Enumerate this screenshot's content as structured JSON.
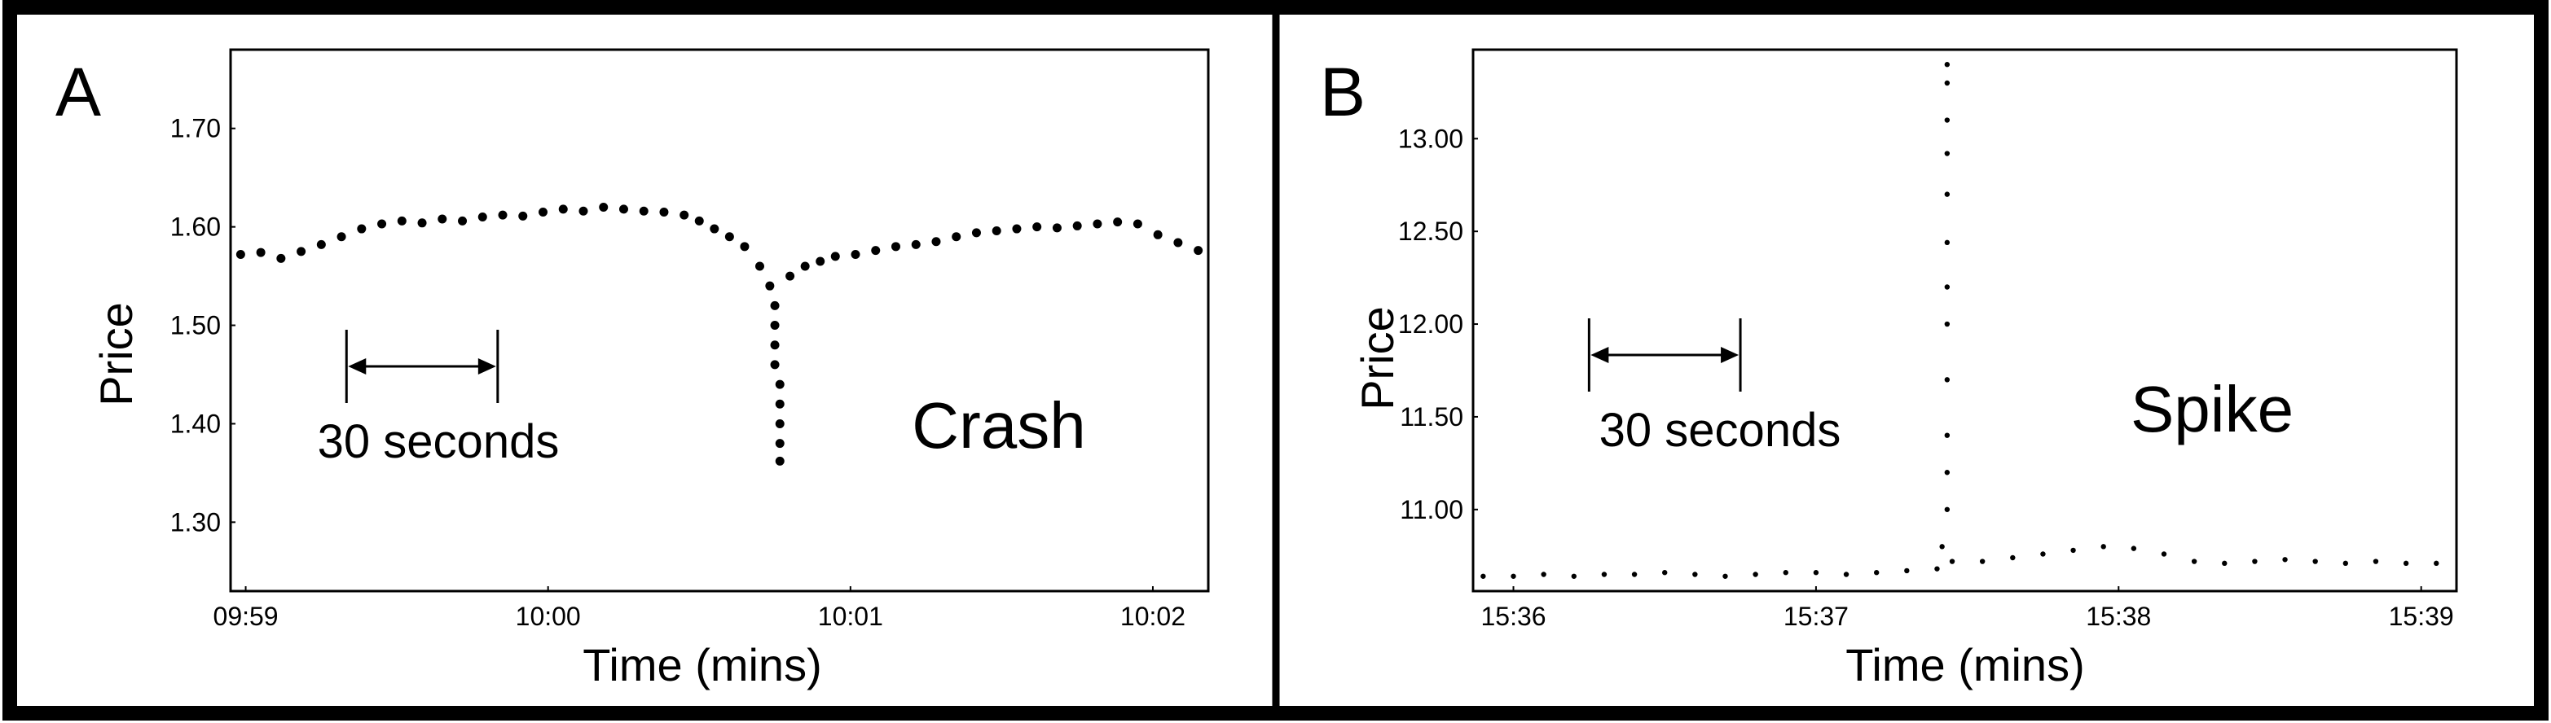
{
  "panels": [
    {
      "letter": "A",
      "annotation": "Crash",
      "interval_label": "30 seconds",
      "chart_data": {
        "type": "scatter",
        "xlabel": "Time (mins)",
        "ylabel": "Price",
        "x_ticks": [
          "09:59",
          "10:00",
          "10:01",
          "10:02"
        ],
        "y_ticks": [
          "1.70",
          "1.60",
          "1.50",
          "1.40",
          "1.30"
        ],
        "xlim": [
          "09:58:57",
          "10:02:11"
        ],
        "ylim": [
          1.23,
          1.78
        ],
        "grid": false,
        "interval_marker": {
          "start": "09:59:20",
          "end": "09:59:50"
        },
        "series": [
          {
            "points": [
              [
                "09:58:59",
                1.572
              ],
              [
                "09:59:03",
                1.574
              ],
              [
                "09:59:07",
                1.568
              ],
              [
                "09:59:11",
                1.575
              ],
              [
                "09:59:15",
                1.582
              ],
              [
                "09:59:19",
                1.59
              ],
              [
                "09:59:23",
                1.598
              ],
              [
                "09:59:27",
                1.603
              ],
              [
                "09:59:31",
                1.606
              ],
              [
                "09:59:35",
                1.604
              ],
              [
                "09:59:39",
                1.608
              ],
              [
                "09:59:43",
                1.606
              ],
              [
                "09:59:47",
                1.61
              ],
              [
                "09:59:51",
                1.612
              ],
              [
                "09:59:55",
                1.611
              ],
              [
                "09:59:59",
                1.615
              ],
              [
                "10:00:03",
                1.618
              ],
              [
                "10:00:07",
                1.616
              ],
              [
                "10:00:11",
                1.62
              ],
              [
                "10:00:15",
                1.618
              ],
              [
                "10:00:19",
                1.616
              ],
              [
                "10:00:23",
                1.615
              ],
              [
                "10:00:27",
                1.612
              ],
              [
                "10:00:30",
                1.606
              ],
              [
                "10:00:33",
                1.598
              ],
              [
                "10:00:36",
                1.59
              ],
              [
                "10:00:39",
                1.58
              ],
              [
                "10:00:42",
                1.56
              ],
              [
                "10:00:44",
                1.54
              ],
              [
                "10:00:45",
                1.52
              ],
              [
                "10:00:45",
                1.5
              ],
              [
                "10:00:45",
                1.48
              ],
              [
                "10:00:45",
                1.46
              ],
              [
                "10:00:46",
                1.44
              ],
              [
                "10:00:46",
                1.42
              ],
              [
                "10:00:46",
                1.4
              ],
              [
                "10:00:46",
                1.38
              ],
              [
                "10:00:46",
                1.362
              ],
              [
                "10:00:48",
                1.55
              ],
              [
                "10:00:51",
                1.56
              ],
              [
                "10:00:54",
                1.565
              ],
              [
                "10:00:57",
                1.57
              ],
              [
                "10:01:01",
                1.572
              ],
              [
                "10:01:05",
                1.576
              ],
              [
                "10:01:09",
                1.58
              ],
              [
                "10:01:13",
                1.582
              ],
              [
                "10:01:17",
                1.585
              ],
              [
                "10:01:21",
                1.59
              ],
              [
                "10:01:25",
                1.594
              ],
              [
                "10:01:29",
                1.596
              ],
              [
                "10:01:33",
                1.598
              ],
              [
                "10:01:37",
                1.6
              ],
              [
                "10:01:41",
                1.599
              ],
              [
                "10:01:45",
                1.601
              ],
              [
                "10:01:49",
                1.603
              ],
              [
                "10:01:53",
                1.605
              ],
              [
                "10:01:57",
                1.603
              ],
              [
                "10:02:01",
                1.592
              ],
              [
                "10:02:05",
                1.584
              ],
              [
                "10:02:09",
                1.576
              ]
            ]
          }
        ]
      }
    },
    {
      "letter": "B",
      "annotation": "Spike",
      "interval_label": "30 seconds",
      "chart_data": {
        "type": "scatter",
        "xlabel": "Time (mins)",
        "ylabel": "Price",
        "x_ticks": [
          "15:36",
          "15:37",
          "15:38",
          "15:39"
        ],
        "y_ticks": [
          "13.00",
          "12.50",
          "12.00",
          "11.50",
          "11.00"
        ],
        "xlim": [
          "15:35:52",
          "15:39:07"
        ],
        "ylim": [
          10.56,
          13.48
        ],
        "grid": false,
        "interval_marker": {
          "start": "15:36:15",
          "end": "15:36:45"
        },
        "series": [
          {
            "points": [
              [
                "15:35:54",
                10.64
              ],
              [
                "15:36:00",
                10.64
              ],
              [
                "15:36:06",
                10.65
              ],
              [
                "15:36:12",
                10.64
              ],
              [
                "15:36:18",
                10.65
              ],
              [
                "15:36:24",
                10.65
              ],
              [
                "15:36:30",
                10.66
              ],
              [
                "15:36:36",
                10.65
              ],
              [
                "15:36:42",
                10.64
              ],
              [
                "15:36:48",
                10.65
              ],
              [
                "15:36:54",
                10.66
              ],
              [
                "15:37:00",
                10.66
              ],
              [
                "15:37:06",
                10.65
              ],
              [
                "15:37:12",
                10.66
              ],
              [
                "15:37:18",
                10.67
              ],
              [
                "15:37:24",
                10.68
              ],
              [
                "15:37:25",
                10.8
              ],
              [
                "15:37:26",
                11.0
              ],
              [
                "15:37:26",
                11.2
              ],
              [
                "15:37:26",
                11.4
              ],
              [
                "15:37:26",
                11.7
              ],
              [
                "15:37:26",
                12.0
              ],
              [
                "15:37:26",
                12.2
              ],
              [
                "15:37:26",
                12.44
              ],
              [
                "15:37:26",
                12.7
              ],
              [
                "15:37:26",
                12.92
              ],
              [
                "15:37:26",
                13.1
              ],
              [
                "15:37:26",
                13.3
              ],
              [
                "15:37:26",
                13.4
              ],
              [
                "15:37:27",
                10.72
              ],
              [
                "15:37:33",
                10.72
              ],
              [
                "15:37:39",
                10.74
              ],
              [
                "15:37:45",
                10.76
              ],
              [
                "15:37:51",
                10.78
              ],
              [
                "15:37:57",
                10.8
              ],
              [
                "15:38:03",
                10.79
              ],
              [
                "15:38:09",
                10.76
              ],
              [
                "15:38:15",
                10.72
              ],
              [
                "15:38:21",
                10.71
              ],
              [
                "15:38:27",
                10.72
              ],
              [
                "15:38:33",
                10.73
              ],
              [
                "15:38:39",
                10.72
              ],
              [
                "15:38:45",
                10.71
              ],
              [
                "15:38:51",
                10.72
              ],
              [
                "15:38:57",
                10.71
              ],
              [
                "15:39:03",
                10.71
              ]
            ]
          }
        ]
      }
    }
  ]
}
